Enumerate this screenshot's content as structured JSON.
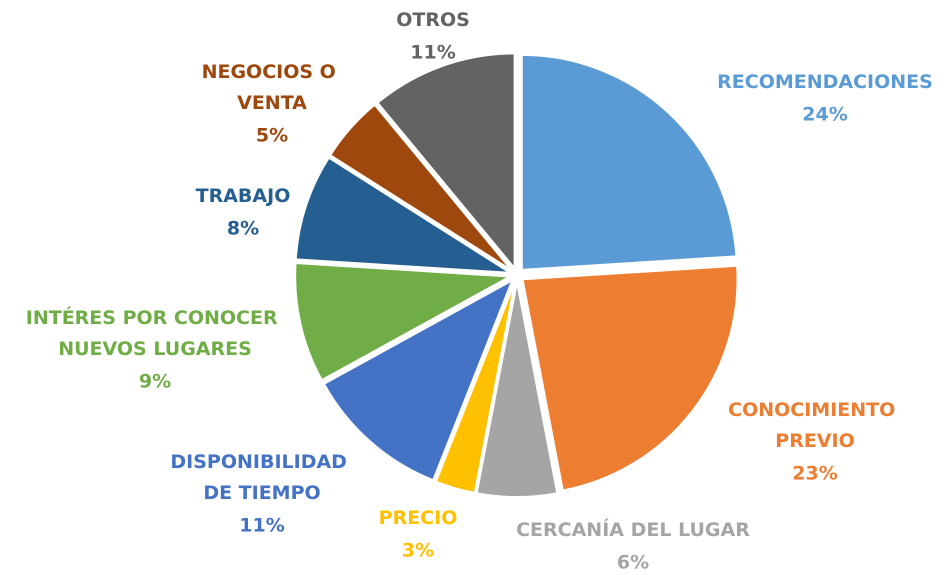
{
  "chart_data": {
    "type": "pie",
    "categories": [
      "RECOMENDACIONES",
      "CONOCIMIENTO PREVIO",
      "CERCANÍA DEL LUGAR",
      "PRECIO",
      "DISPONIBILIDAD DE TIEMPO",
      "INTÉRES POR CONOCER NUEVOS LUGARES",
      "TRABAJO",
      "NEGOCIOS O VENTA",
      "OTROS"
    ],
    "values": [
      24,
      23,
      6,
      3,
      11,
      9,
      8,
      5,
      11
    ],
    "value_labels": [
      "24%",
      "23%",
      "6%",
      "3%",
      "11%",
      "9%",
      "8%",
      "5%",
      "11%"
    ],
    "colors": [
      "#5b9bd5",
      "#ed7d31",
      "#a5a5a5",
      "#ffc000",
      "#4472c4",
      "#70ad47",
      "#255e91",
      "#9e480e",
      "#636363"
    ]
  }
}
